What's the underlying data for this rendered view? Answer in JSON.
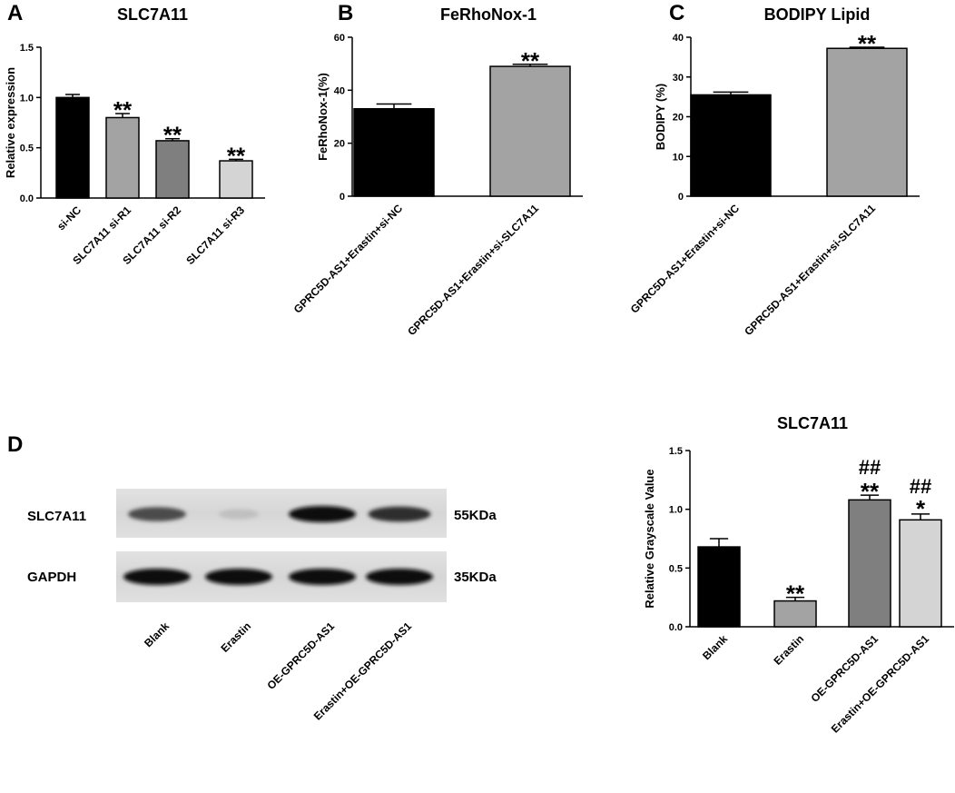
{
  "panel_labels": [
    "A",
    "B",
    "C",
    "D"
  ],
  "chart_data": [
    {
      "panel": "A",
      "type": "bar",
      "title": "SLC7A11",
      "ylabel": "Relative expression",
      "xlabel": "",
      "categories": [
        "si-NC",
        "SLC7A11 si-R1",
        "SLC7A11 si-R2",
        "SLC7A11 si-R3"
      ],
      "values": [
        1.0,
        0.8,
        0.57,
        0.37
      ],
      "errors": [
        0.03,
        0.04,
        0.02,
        0.015
      ],
      "annotations": [
        "",
        "**",
        "**",
        "**"
      ],
      "colors": [
        "#000000",
        "#a3a3a3",
        "#7f7f7f",
        "#d4d4d4"
      ],
      "ylim": [
        0,
        1.5
      ],
      "yticks": [
        0.0,
        0.5,
        1.0,
        1.5
      ],
      "ytick_labels": [
        "0.0",
        "0.5",
        "1.0",
        "1.5"
      ]
    },
    {
      "panel": "B",
      "type": "bar",
      "title": "FeRhoNox-1",
      "ylabel": "FeRhoNox-1(%)",
      "xlabel": "",
      "categories": [
        "GPRC5D-AS1+Erastin+si-NC",
        "GPRC5D-AS1+Erastin+si-SLC7A11"
      ],
      "values": [
        33,
        49
      ],
      "errors": [
        1.8,
        0.8
      ],
      "annotations": [
        "",
        "**"
      ],
      "colors": [
        "#000000",
        "#a3a3a3"
      ],
      "ylim": [
        0,
        60
      ],
      "yticks": [
        0,
        20,
        40,
        60
      ],
      "ytick_labels": [
        "0",
        "20",
        "40",
        "60"
      ]
    },
    {
      "panel": "C",
      "type": "bar",
      "title": "BODIPY Lipid",
      "ylabel": "BODIPY (%)",
      "xlabel": "",
      "categories": [
        "GPRC5D-AS1+Erastin+si-NC",
        "GPRC5D-AS1+Erastin+si-SLC7A11"
      ],
      "values": [
        25.5,
        37.2
      ],
      "errors": [
        0.7,
        0.3
      ],
      "annotations": [
        "",
        "**"
      ],
      "colors": [
        "#000000",
        "#a3a3a3"
      ],
      "ylim": [
        0,
        40
      ],
      "yticks": [
        0,
        10,
        20,
        30,
        40
      ],
      "ytick_labels": [
        "0",
        "10",
        "20",
        "30",
        "40"
      ]
    },
    {
      "panel": "D",
      "type": "bar",
      "title": "SLC7A11",
      "ylabel": "Relative Grayscale Value",
      "xlabel": "",
      "categories": [
        "Blank",
        "Erastin",
        "OE-GPRC5D-AS1",
        "Erastin+OE-GPRC5D-AS1"
      ],
      "values": [
        0.68,
        0.22,
        1.08,
        0.91
      ],
      "errors": [
        0.07,
        0.03,
        0.04,
        0.05
      ],
      "annotations": [
        "",
        "**",
        "**",
        "*"
      ],
      "annotations_hash": [
        "",
        "",
        "##",
        "##"
      ],
      "colors": [
        "#000000",
        "#a3a3a3",
        "#7f7f7f",
        "#d4d4d4"
      ],
      "ylim": [
        0,
        1.5
      ],
      "yticks": [
        0.0,
        0.5,
        1.0,
        1.5
      ],
      "ytick_labels": [
        "0.0",
        "0.5",
        "1.0",
        "1.5"
      ]
    }
  ],
  "western_blot": {
    "rows": [
      {
        "label": "SLC7A11",
        "size": "55KDa",
        "intensities": [
          0.7,
          0.12,
          1.0,
          0.85
        ]
      },
      {
        "label": "GAPDH",
        "size": "35KDa",
        "intensities": [
          1.0,
          1.0,
          1.0,
          1.0
        ]
      }
    ],
    "lanes": [
      "Blank",
      "Erastin",
      "OE-GPRC5D-AS1",
      "Erastin+OE-GPRC5D-AS1"
    ]
  }
}
